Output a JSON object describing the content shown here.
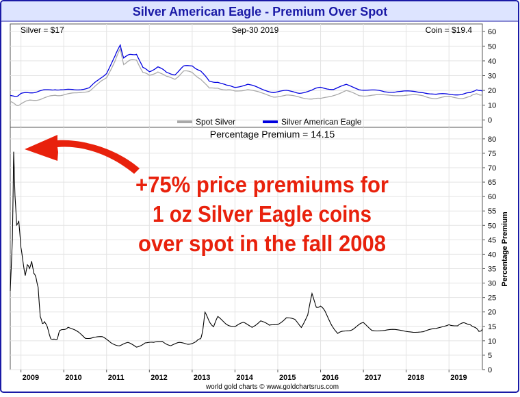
{
  "header": {
    "title": "Silver American Eagle - Premium Over Spot"
  },
  "readouts": {
    "silver": "Silver = $17",
    "date": "Sep-30  2019",
    "coin": "Coin = $19.4"
  },
  "footer": {
    "credit": "world gold charts © www.goldchartsrus.com"
  },
  "annotation": {
    "lines": [
      "+75% price premiums for",
      "1 oz Silver Eagle coins",
      "over spot in the fall 2008"
    ],
    "color": "#e8210c"
  },
  "colors": {
    "frame": "#1a1aa6",
    "title_bg": "#dde4ff",
    "spot": "#a9a9a9",
    "coin": "#0000e0",
    "premium": "#000000",
    "arrow": "#e8210c"
  },
  "chart_data": [
    {
      "type": "line",
      "name": "price-panel",
      "x_ticks": [
        2009,
        2010,
        2011,
        2012,
        2013,
        2014,
        2015,
        2016,
        2017,
        2018,
        2019
      ],
      "y_ticks": [
        0,
        10,
        20,
        30,
        40,
        50,
        60
      ],
      "ylim": [
        -5,
        65
      ],
      "xlim": [
        2008.75,
        2019.78
      ],
      "grid": true,
      "legend": "bottom-center",
      "series": [
        {
          "name": "Spot Silver",
          "x": [
            2008.75,
            2008.9,
            2009.0,
            2009.2,
            2009.4,
            2009.6,
            2009.8,
            2010.0,
            2010.3,
            2010.6,
            2010.8,
            2011.0,
            2011.2,
            2011.32,
            2011.4,
            2011.55,
            2011.7,
            2011.85,
            2012.0,
            2012.2,
            2012.4,
            2012.6,
            2012.8,
            2013.0,
            2013.2,
            2013.4,
            2013.6,
            2013.8,
            2014.0,
            2014.3,
            2014.6,
            2014.9,
            2015.2,
            2015.5,
            2015.8,
            2016.0,
            2016.3,
            2016.6,
            2016.9,
            2017.2,
            2017.5,
            2017.8,
            2018.1,
            2018.4,
            2018.7,
            2019.0,
            2019.3,
            2019.5,
            2019.65,
            2019.78
          ],
          "values": [
            12,
            10,
            11,
            13,
            14,
            15,
            17,
            17,
            18,
            20,
            24,
            29,
            40,
            48,
            38,
            40,
            41,
            32,
            30,
            33,
            29,
            28,
            33,
            32,
            28,
            21,
            22,
            20,
            19.5,
            21,
            18,
            16,
            16.5,
            15.5,
            14.5,
            14,
            17,
            19.5,
            16.5,
            17,
            16.5,
            17,
            16.5,
            16.5,
            14.5,
            15.5,
            15,
            15.5,
            18,
            17
          ]
        },
        {
          "name": "Silver American Eagle",
          "x": [
            2008.75,
            2008.9,
            2009.0,
            2009.2,
            2009.4,
            2009.6,
            2009.8,
            2010.0,
            2010.3,
            2010.6,
            2010.8,
            2011.0,
            2011.2,
            2011.32,
            2011.4,
            2011.55,
            2011.7,
            2011.85,
            2012.0,
            2012.2,
            2012.4,
            2012.6,
            2012.8,
            2013.0,
            2013.2,
            2013.4,
            2013.6,
            2013.8,
            2014.0,
            2014.3,
            2014.6,
            2014.9,
            2015.2,
            2015.5,
            2015.8,
            2016.0,
            2016.3,
            2016.6,
            2016.9,
            2017.2,
            2017.5,
            2017.8,
            2018.1,
            2018.4,
            2018.7,
            2019.0,
            2019.3,
            2019.5,
            2019.65,
            2019.78
          ],
          "values": [
            16,
            16.5,
            17.5,
            18.5,
            19.5,
            20,
            21,
            20,
            20.5,
            22,
            26.5,
            32,
            43,
            51,
            42,
            44,
            45,
            35,
            33,
            36,
            32,
            31,
            36,
            37,
            33,
            26,
            26,
            23,
            22.5,
            24,
            21,
            19,
            19.5,
            18.5,
            20,
            22,
            21,
            23.5,
            21,
            20,
            19,
            19.5,
            19,
            19,
            17,
            17.5,
            17.5,
            18,
            21,
            19.4
          ]
        }
      ],
      "legend_entries": [
        "Spot Silver",
        "Silver American Eagle"
      ]
    },
    {
      "type": "line",
      "name": "premium-panel",
      "title": "Percentage Premium = 14.15",
      "ylabel": "Percentage Premium",
      "x_ticks": [
        2009,
        2010,
        2011,
        2012,
        2013,
        2014,
        2015,
        2016,
        2017,
        2018,
        2019
      ],
      "y_ticks": [
        0,
        5,
        10,
        15,
        20,
        25,
        30,
        35,
        40,
        45,
        50,
        55,
        60,
        65,
        70,
        75,
        80
      ],
      "ylim": [
        0,
        84
      ],
      "xlim": [
        2008.75,
        2019.78
      ],
      "grid": true,
      "series": [
        {
          "name": "Percentage Premium",
          "x": [
            2008.75,
            2008.8,
            2008.83,
            2008.86,
            2008.9,
            2008.95,
            2009.0,
            2009.05,
            2009.1,
            2009.15,
            2009.2,
            2009.25,
            2009.3,
            2009.35,
            2009.4,
            2009.45,
            2009.5,
            2009.55,
            2009.6,
            2009.65,
            2009.7,
            2009.75,
            2009.8,
            2009.85,
            2009.9,
            2010.0,
            2010.1,
            2010.3,
            2010.5,
            2010.7,
            2010.9,
            2011.1,
            2011.3,
            2011.5,
            2011.7,
            2011.9,
            2012.1,
            2012.3,
            2012.5,
            2012.7,
            2012.9,
            2013.1,
            2013.15,
            2013.2,
            2013.25,
            2013.3,
            2013.4,
            2013.5,
            2013.6,
            2013.8,
            2014.0,
            2014.2,
            2014.4,
            2014.6,
            2014.8,
            2015.0,
            2015.2,
            2015.4,
            2015.55,
            2015.7,
            2015.8,
            2015.9,
            2016.0,
            2016.1,
            2016.25,
            2016.4,
            2016.55,
            2016.7,
            2016.85,
            2017.0,
            2017.2,
            2017.5,
            2017.8,
            2018.1,
            2018.4,
            2018.7,
            2019.0,
            2019.2,
            2019.35,
            2019.5,
            2019.6,
            2019.7,
            2019.78
          ],
          "values": [
            27,
            45,
            76,
            60,
            50,
            52,
            42,
            37,
            33,
            36,
            35,
            38,
            33,
            32,
            29,
            18,
            16,
            17,
            15,
            13,
            11,
            10,
            10.5,
            11,
            13,
            14,
            15,
            13,
            11,
            11.5,
            11,
            9.5,
            8.5,
            9,
            8,
            9.5,
            9,
            10,
            8.5,
            9,
            9,
            10,
            10,
            11,
            14,
            19.5,
            17,
            15,
            18,
            16,
            15,
            16,
            15,
            17,
            15,
            16,
            18,
            17,
            15,
            19,
            26,
            22,
            22,
            20,
            16,
            12.5,
            13,
            14,
            15,
            16,
            14,
            13.5,
            13.5,
            13.5,
            13,
            14,
            16,
            15,
            16,
            16,
            14.5,
            13,
            14.15
          ]
        }
      ]
    }
  ]
}
